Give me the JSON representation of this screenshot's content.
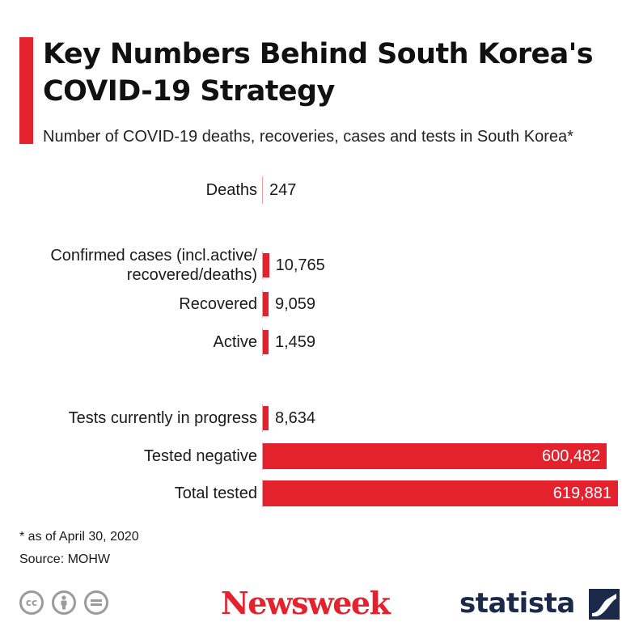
{
  "title": "Key Numbers Behind South Korea's COVID-19 Strategy",
  "subtitle": "Number of COVID-19 deaths, recoveries, cases and tests in South Korea*",
  "chart_data": {
    "type": "bar",
    "orientation": "horizontal",
    "title": "Key Numbers Behind South Korea's COVID-19 Strategy",
    "subtitle": "Number of COVID-19 deaths, recoveries, cases and tests in South Korea*",
    "categories": [
      "Deaths",
      "Confirmed cases (incl.active/ recovered/deaths)",
      "Recovered",
      "Active",
      "Tests currently in progress",
      "Tested negative",
      "Total tested"
    ],
    "category_lines": [
      [
        "Deaths"
      ],
      [
        "Confirmed cases (incl.active/",
        "recovered/deaths)"
      ],
      [
        "Recovered"
      ],
      [
        "Active"
      ],
      [
        "Tests currently in progress"
      ],
      [
        "Tested negative"
      ],
      [
        "Total tested"
      ]
    ],
    "values": [
      247,
      10765,
      9059,
      1459,
      8634,
      600482,
      619881
    ],
    "value_labels": [
      "247",
      "10,765",
      "9,059",
      "1,459",
      "8,634",
      "600,482",
      "619,881"
    ],
    "xlim": [
      0,
      619881
    ],
    "grid": false,
    "bar_color": "#e3222d"
  },
  "footnotes": {
    "asterisk": "* as of April 30, 2020",
    "source": "Source: MOHW"
  },
  "branding": {
    "publisher": "Newsweek",
    "provider": "statista",
    "license_icons": [
      "cc-icon",
      "by-icon",
      "nd-icon"
    ]
  },
  "colors": {
    "accent": "#e3222d",
    "statista_navy": "#1b2a4a",
    "icon_gray": "#9b9b9b"
  }
}
